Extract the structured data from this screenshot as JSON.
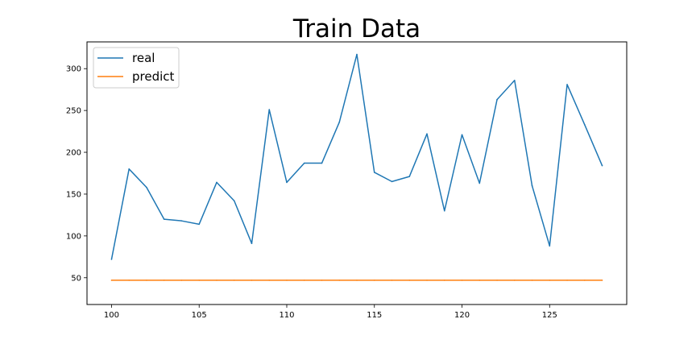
{
  "chart_data": {
    "type": "line",
    "title": "Train Data",
    "xlabel": "",
    "ylabel": "",
    "xlim": [
      98.6,
      129.4
    ],
    "ylim": [
      18,
      332
    ],
    "x_ticks": [
      100,
      105,
      110,
      115,
      120,
      125
    ],
    "y_ticks": [
      50,
      100,
      150,
      200,
      250,
      300
    ],
    "grid": false,
    "legend_position": "top-left",
    "x": [
      100,
      101,
      102,
      103,
      104,
      105,
      106,
      107,
      108,
      109,
      110,
      111,
      112,
      113,
      114,
      115,
      116,
      117,
      118,
      119,
      120,
      121,
      122,
      123,
      124,
      125,
      126,
      127,
      128
    ],
    "series": [
      {
        "name": "real",
        "color": "#1f77b4",
        "values": [
          72,
          180,
          158,
          120,
          118,
          114,
          164,
          142,
          91,
          251,
          164,
          187,
          187,
          236,
          317,
          176,
          165,
          171,
          222,
          130,
          221,
          163,
          263,
          286,
          160,
          88,
          281,
          233,
          184
        ]
      },
      {
        "name": "predict",
        "color": "#ff7f0e",
        "values": [
          47,
          47,
          47,
          47,
          47,
          47,
          47,
          47,
          47,
          47,
          47,
          47,
          47,
          47,
          47,
          47,
          47,
          47,
          47,
          47,
          47,
          47,
          47,
          47,
          47,
          47,
          47,
          47,
          47
        ]
      }
    ]
  }
}
